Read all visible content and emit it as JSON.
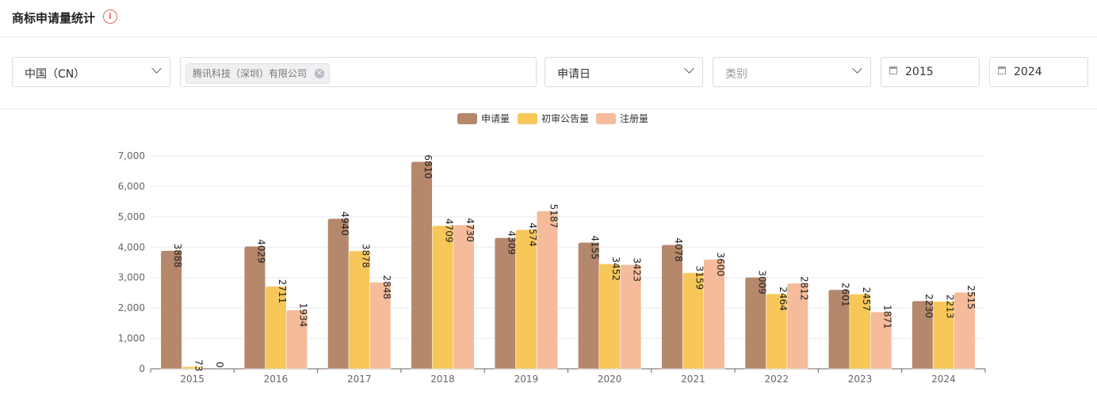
{
  "header": {
    "title": "商标申请量统计",
    "info_icon": "info-circle-icon"
  },
  "filters": {
    "country": "中国（CN）",
    "applicant_tag": "腾讯科技（深圳）有限公司",
    "date_type": "申请日",
    "category_placeholder": "类别",
    "year_from": "2015",
    "year_to": "2024"
  },
  "chart_data": {
    "type": "bar",
    "categories": [
      "2015",
      "2016",
      "2017",
      "2018",
      "2019",
      "2020",
      "2021",
      "2022",
      "2023",
      "2024"
    ],
    "series": [
      {
        "name": "申请量",
        "color": "#b5876b",
        "values": [
          3888,
          4029,
          4940,
          6810,
          4309,
          4155,
          4078,
          3009,
          2601,
          2230
        ]
      },
      {
        "name": "初审公告量",
        "color": "#f7c75a",
        "values": [
          73,
          2711,
          3878,
          4709,
          4574,
          3452,
          3159,
          2464,
          2457,
          2213
        ]
      },
      {
        "name": "注册量",
        "color": "#f5bb9a",
        "values": [
          0,
          1934,
          2848,
          4730,
          5187,
          3423,
          3600,
          2812,
          1871,
          2515
        ]
      }
    ],
    "ylim": [
      0,
      7000
    ],
    "yticks": [
      "0",
      "1,000",
      "2,000",
      "3,000",
      "4,000",
      "5,000",
      "6,000",
      "7,000"
    ],
    "grid": true,
    "legend": "top-center",
    "data_labels": "rotated"
  }
}
